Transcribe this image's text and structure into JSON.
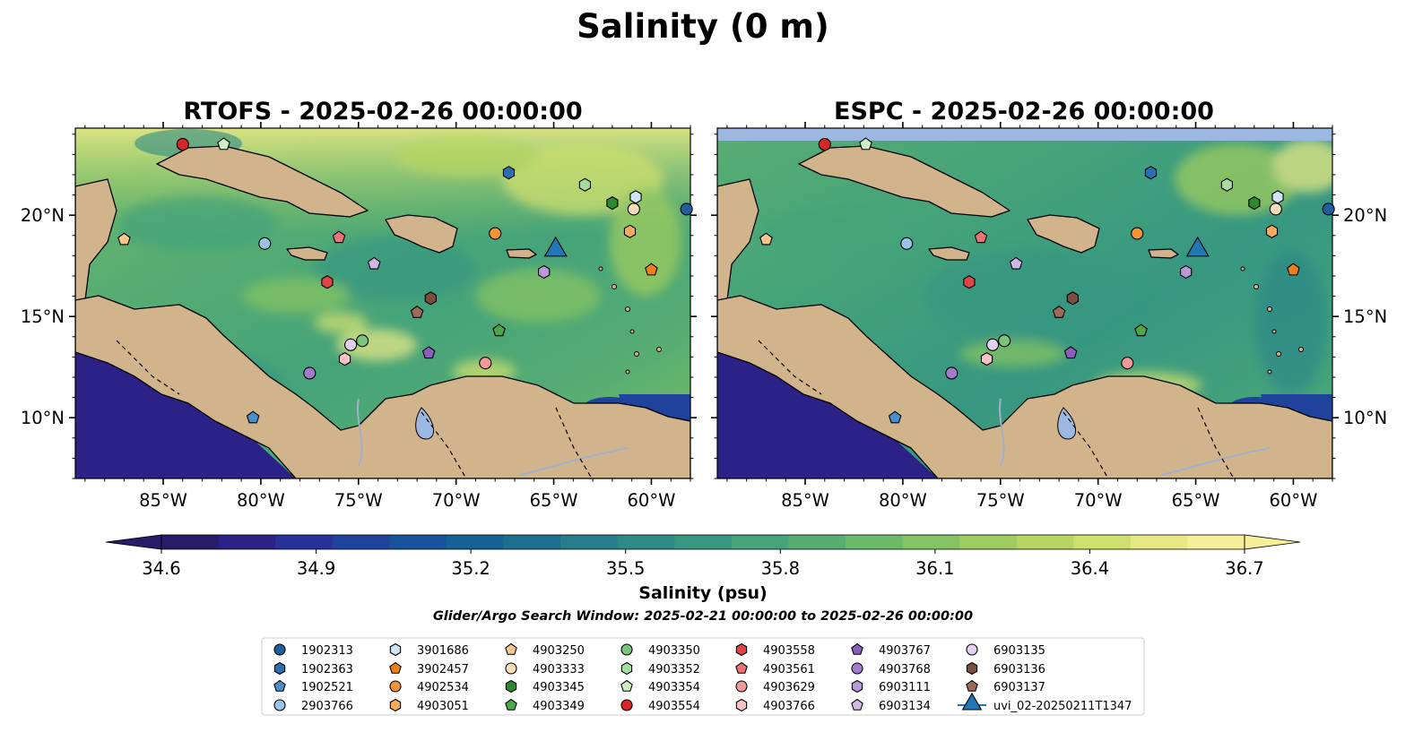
{
  "figure": {
    "title": "Salinity (0 m)",
    "search_window": "Glider/Argo Search Window: 2025-02-21 00:00:00 to 2025-02-26 00:00:00"
  },
  "chart_data": [
    {
      "type": "heatmap",
      "title": "RTOFS - 2025-02-26 00:00:00",
      "model": "RTOFS",
      "xlim": [
        -89.5,
        -58
      ],
      "ylim": [
        7,
        24.3
      ],
      "x_ticks": [
        "85°W",
        "80°W",
        "75°W",
        "70°W",
        "65°W",
        "60°W"
      ],
      "y_ticks": [
        "10°N",
        "15°N",
        "20°N"
      ],
      "y_ticks_side": "left"
    },
    {
      "type": "heatmap",
      "title": "ESPC - 2025-02-26 00:00:00",
      "model": "ESPC",
      "xlim": [
        -89.5,
        -58
      ],
      "ylim": [
        7,
        24.3
      ],
      "x_ticks": [
        "85°W",
        "80°W",
        "75°W",
        "70°W",
        "65°W",
        "60°W"
      ],
      "y_ticks": [
        "10°N",
        "15°N",
        "20°N"
      ],
      "y_ticks_side": "right"
    }
  ],
  "colorbar": {
    "label": "Salinity (psu)",
    "range": [
      34.6,
      36.7
    ],
    "extend": "both",
    "ticks": [
      "34.6",
      "34.9",
      "35.2",
      "35.5",
      "35.8",
      "36.1",
      "36.4",
      "36.7"
    ],
    "colors": [
      "#2a1a6a",
      "#2c2187",
      "#28309a",
      "#1f429c",
      "#17539a",
      "#176295",
      "#1c708f",
      "#257d8b",
      "#2d8a86",
      "#379781",
      "#45a37a",
      "#58ae72",
      "#6db96a",
      "#84c363",
      "#9dcc5f",
      "#b6d562",
      "#cfdf6e",
      "#e6e884",
      "#f7ee9a"
    ],
    "under_color": "#2a1a6a",
    "over_color": "#f7ee9a"
  },
  "legend": {
    "location": "bottom-center",
    "columns": 7,
    "entries": [
      {
        "label": "1902313",
        "marker": "circle",
        "color": "#1f5f9e"
      },
      {
        "label": "1902363",
        "marker": "hexagon",
        "color": "#2a6fb0"
      },
      {
        "label": "1902521",
        "marker": "pentagon",
        "color": "#4a8fcc"
      },
      {
        "label": "2903766",
        "marker": "circle",
        "color": "#9cc3e6"
      },
      {
        "label": "3901686",
        "marker": "hexagon",
        "color": "#cfe4f7"
      },
      {
        "label": "3902457",
        "marker": "pentagon",
        "color": "#f07f17"
      },
      {
        "label": "4902534",
        "marker": "circle",
        "color": "#f39436"
      },
      {
        "label": "4903051",
        "marker": "hexagon",
        "color": "#f7a95c"
      },
      {
        "label": "4903250",
        "marker": "pentagon",
        "color": "#f9c48e"
      },
      {
        "label": "4903333",
        "marker": "circle",
        "color": "#fbdcb8"
      },
      {
        "label": "4903345",
        "marker": "hexagon",
        "color": "#2b8a2b"
      },
      {
        "label": "4903349",
        "marker": "pentagon",
        "color": "#4aa84a"
      },
      {
        "label": "4903350",
        "marker": "circle",
        "color": "#7ac37a"
      },
      {
        "label": "4903352",
        "marker": "hexagon",
        "color": "#a6dca0"
      },
      {
        "label": "4903354",
        "marker": "pentagon",
        "color": "#ccefc4"
      },
      {
        "label": "4903554",
        "marker": "circle",
        "color": "#d62728"
      },
      {
        "label": "4903558",
        "marker": "hexagon",
        "color": "#e0454a"
      },
      {
        "label": "4903561",
        "marker": "pentagon",
        "color": "#ea7373"
      },
      {
        "label": "4903629",
        "marker": "circle",
        "color": "#f29a9a"
      },
      {
        "label": "4903766",
        "marker": "hexagon",
        "color": "#f8c3c3"
      },
      {
        "label": "4903767",
        "marker": "pentagon",
        "color": "#8a5ebc"
      },
      {
        "label": "4903768",
        "marker": "circle",
        "color": "#a27ccc"
      },
      {
        "label": "6903111",
        "marker": "hexagon",
        "color": "#b89ad9"
      },
      {
        "label": "6903134",
        "marker": "pentagon",
        "color": "#cfb8e6"
      },
      {
        "label": "6903135",
        "marker": "circle",
        "color": "#e3d1f1"
      },
      {
        "label": "6903136",
        "marker": "hexagon",
        "color": "#7b4f3f"
      },
      {
        "label": "6903137",
        "marker": "pentagon",
        "color": "#9c6a57"
      },
      {
        "label": "uvi_02-20250211T1347",
        "marker": "triangle",
        "color": "#1f77b4"
      }
    ]
  },
  "observations": [
    {
      "id": "4903554",
      "lon": -84.0,
      "lat": 23.5
    },
    {
      "id": "4903354",
      "lon": -81.9,
      "lat": 23.5
    },
    {
      "id": "1902363",
      "lon": -67.3,
      "lat": 22.1
    },
    {
      "id": "4903352",
      "lon": -63.4,
      "lat": 21.5
    },
    {
      "id": "3901686",
      "lon": -60.8,
      "lat": 20.9
    },
    {
      "id": "4903345",
      "lon": -62.0,
      "lat": 20.6
    },
    {
      "id": "4903333",
      "lon": -60.9,
      "lat": 20.3
    },
    {
      "id": "1902313",
      "lon": -58.2,
      "lat": 20.3
    },
    {
      "id": "4903250",
      "lon": -87.0,
      "lat": 18.8
    },
    {
      "id": "2903766",
      "lon": -79.8,
      "lat": 18.6
    },
    {
      "id": "4903561",
      "lon": -76.0,
      "lat": 18.9
    },
    {
      "id": "4902534",
      "lon": -68.0,
      "lat": 19.1
    },
    {
      "id": "4903051",
      "lon": -61.1,
      "lat": 19.2
    },
    {
      "id": "6903134",
      "lon": -74.2,
      "lat": 17.6
    },
    {
      "id": "3902457",
      "lon": -60.0,
      "lat": 17.3
    },
    {
      "id": "6903111",
      "lon": -65.5,
      "lat": 17.2
    },
    {
      "id": "4903558",
      "lon": -76.6,
      "lat": 16.7
    },
    {
      "id": "6903136",
      "lon": -71.3,
      "lat": 15.9
    },
    {
      "id": "6903137",
      "lon": -72.0,
      "lat": 15.2
    },
    {
      "id": "4903349",
      "lon": -67.8,
      "lat": 14.3
    },
    {
      "id": "4903350",
      "lon": -74.8,
      "lat": 13.8
    },
    {
      "id": "6903135",
      "lon": -75.4,
      "lat": 13.6
    },
    {
      "id": "4903767",
      "lon": -71.4,
      "lat": 13.2
    },
    {
      "id": "4903766",
      "lon": -75.7,
      "lat": 12.9
    },
    {
      "id": "4903629",
      "lon": -68.5,
      "lat": 12.7
    },
    {
      "id": "4903768",
      "lon": -77.5,
      "lat": 12.2
    },
    {
      "id": "1902521",
      "lon": -80.4,
      "lat": 10.0
    },
    {
      "id": "uvi_02-20250211T1347",
      "lon": -64.9,
      "lat": 18.2
    }
  ]
}
